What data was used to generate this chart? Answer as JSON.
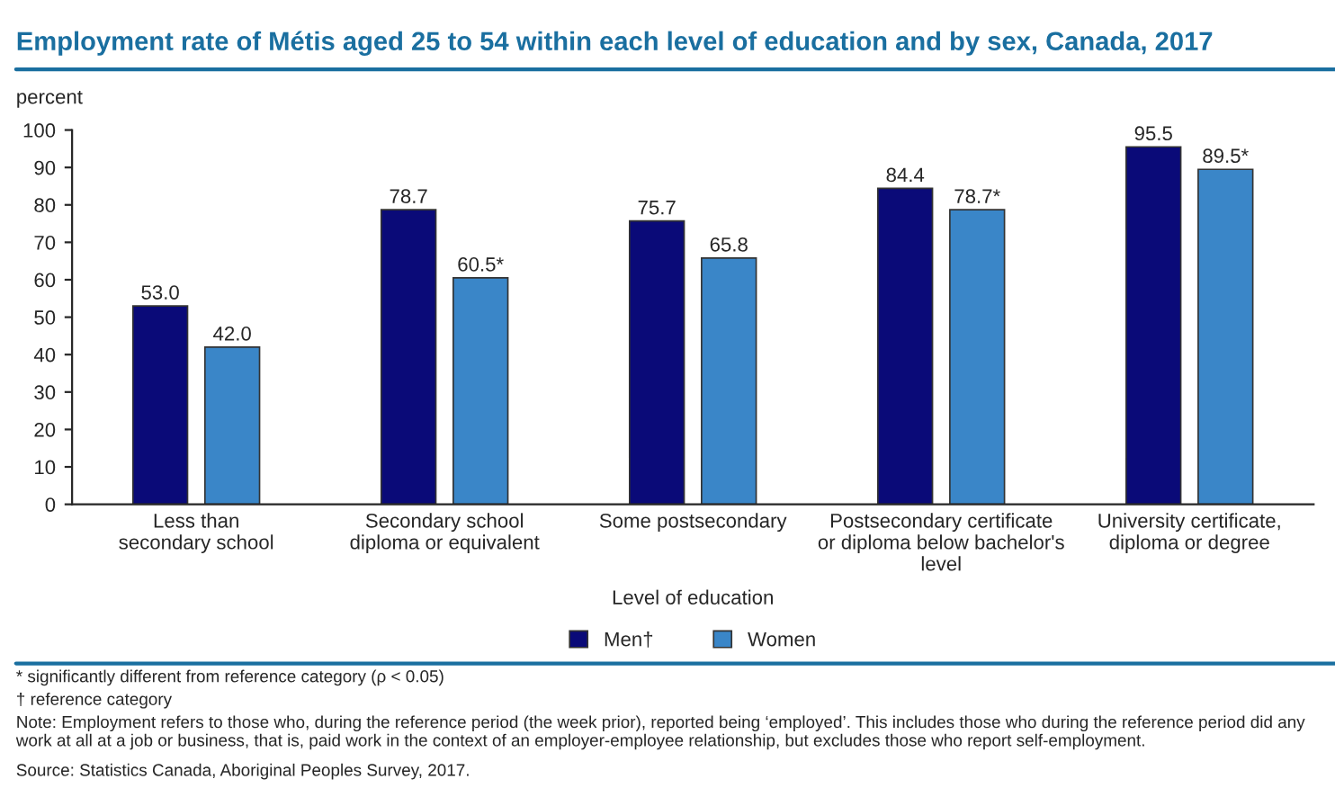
{
  "chart_data": {
    "type": "bar",
    "title": "Employment rate of Métis aged 25 to 54 within each level of education and by sex, Canada, 2017",
    "ylabel": "percent",
    "xlabel": "Level of education",
    "categories": [
      "Less than\nsecondary school",
      "Secondary school\ndiploma or equivalent",
      "Some postsecondary",
      "Postsecondary certificate\nor diploma below bachelor's\nlevel",
      "University certificate,\ndiploma or degree"
    ],
    "series": [
      {
        "name": "Men†",
        "color": "#0a0a78",
        "values": [
          53.0,
          78.7,
          75.7,
          84.4,
          95.5
        ],
        "value_labels": [
          "53.0",
          "78.7",
          "75.7",
          "84.4",
          "95.5"
        ]
      },
      {
        "name": "Women",
        "color": "#3a86c8",
        "values": [
          42.0,
          60.5,
          65.8,
          78.7,
          89.5
        ],
        "value_labels": [
          "42.0",
          "60.5*",
          "65.8",
          "78.7*",
          "89.5*"
        ]
      }
    ],
    "ylim": [
      0,
      100
    ],
    "yticks": [
      0,
      10,
      20,
      30,
      40,
      50,
      60,
      70,
      80,
      90,
      100
    ],
    "grid": false,
    "legend": "bottom",
    "annotations": [
      "* significantly different from reference category (ρ < 0.05)",
      "† reference category",
      "Note: Employment refers to those who, during the reference period (the week prior), reported being ‘employed’. This includes those who during the reference period did any work at all at a job or business, that is, paid work in the context of an employer-employee relationship, but excludes those who report self-employment.",
      "Source: Statistics Canada, Aboriginal Peoples Survey, 2017."
    ]
  }
}
